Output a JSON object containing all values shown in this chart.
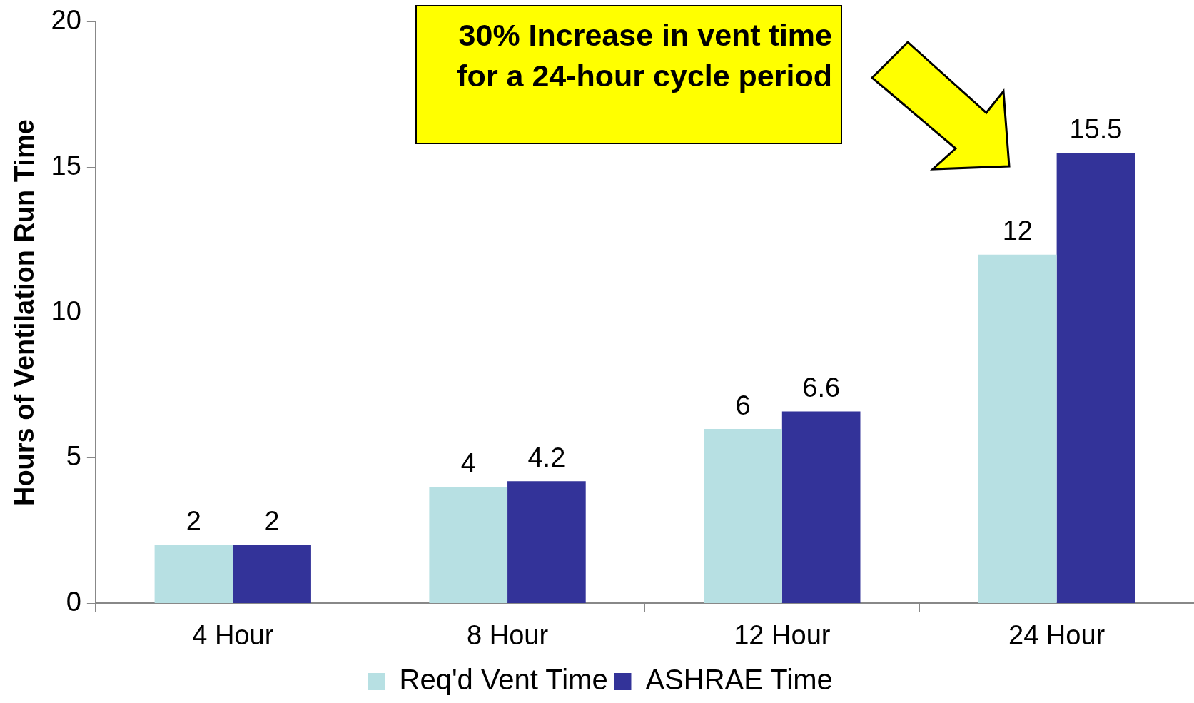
{
  "chart_data": {
    "type": "bar",
    "ylabel": "Hours of Ventilation Run Time",
    "categories": [
      "4 Hour",
      "8 Hour",
      "12 Hour",
      "24 Hour"
    ],
    "series": [
      {
        "name": "Req'd Vent Time",
        "color": "#b7e0e3",
        "values": [
          2,
          4,
          6,
          12
        ]
      },
      {
        "name": "ASHRAE Time",
        "color": "#333399",
        "values": [
          2,
          4.2,
          6.6,
          15.5
        ]
      }
    ],
    "ylim": [
      0,
      20
    ],
    "yticks": [
      0,
      5,
      10,
      15,
      20
    ],
    "grid": false,
    "legend": "bottom",
    "data_labels": true,
    "annotations": [
      "30% Increase in vent time for a 24-hour cycle period"
    ]
  }
}
